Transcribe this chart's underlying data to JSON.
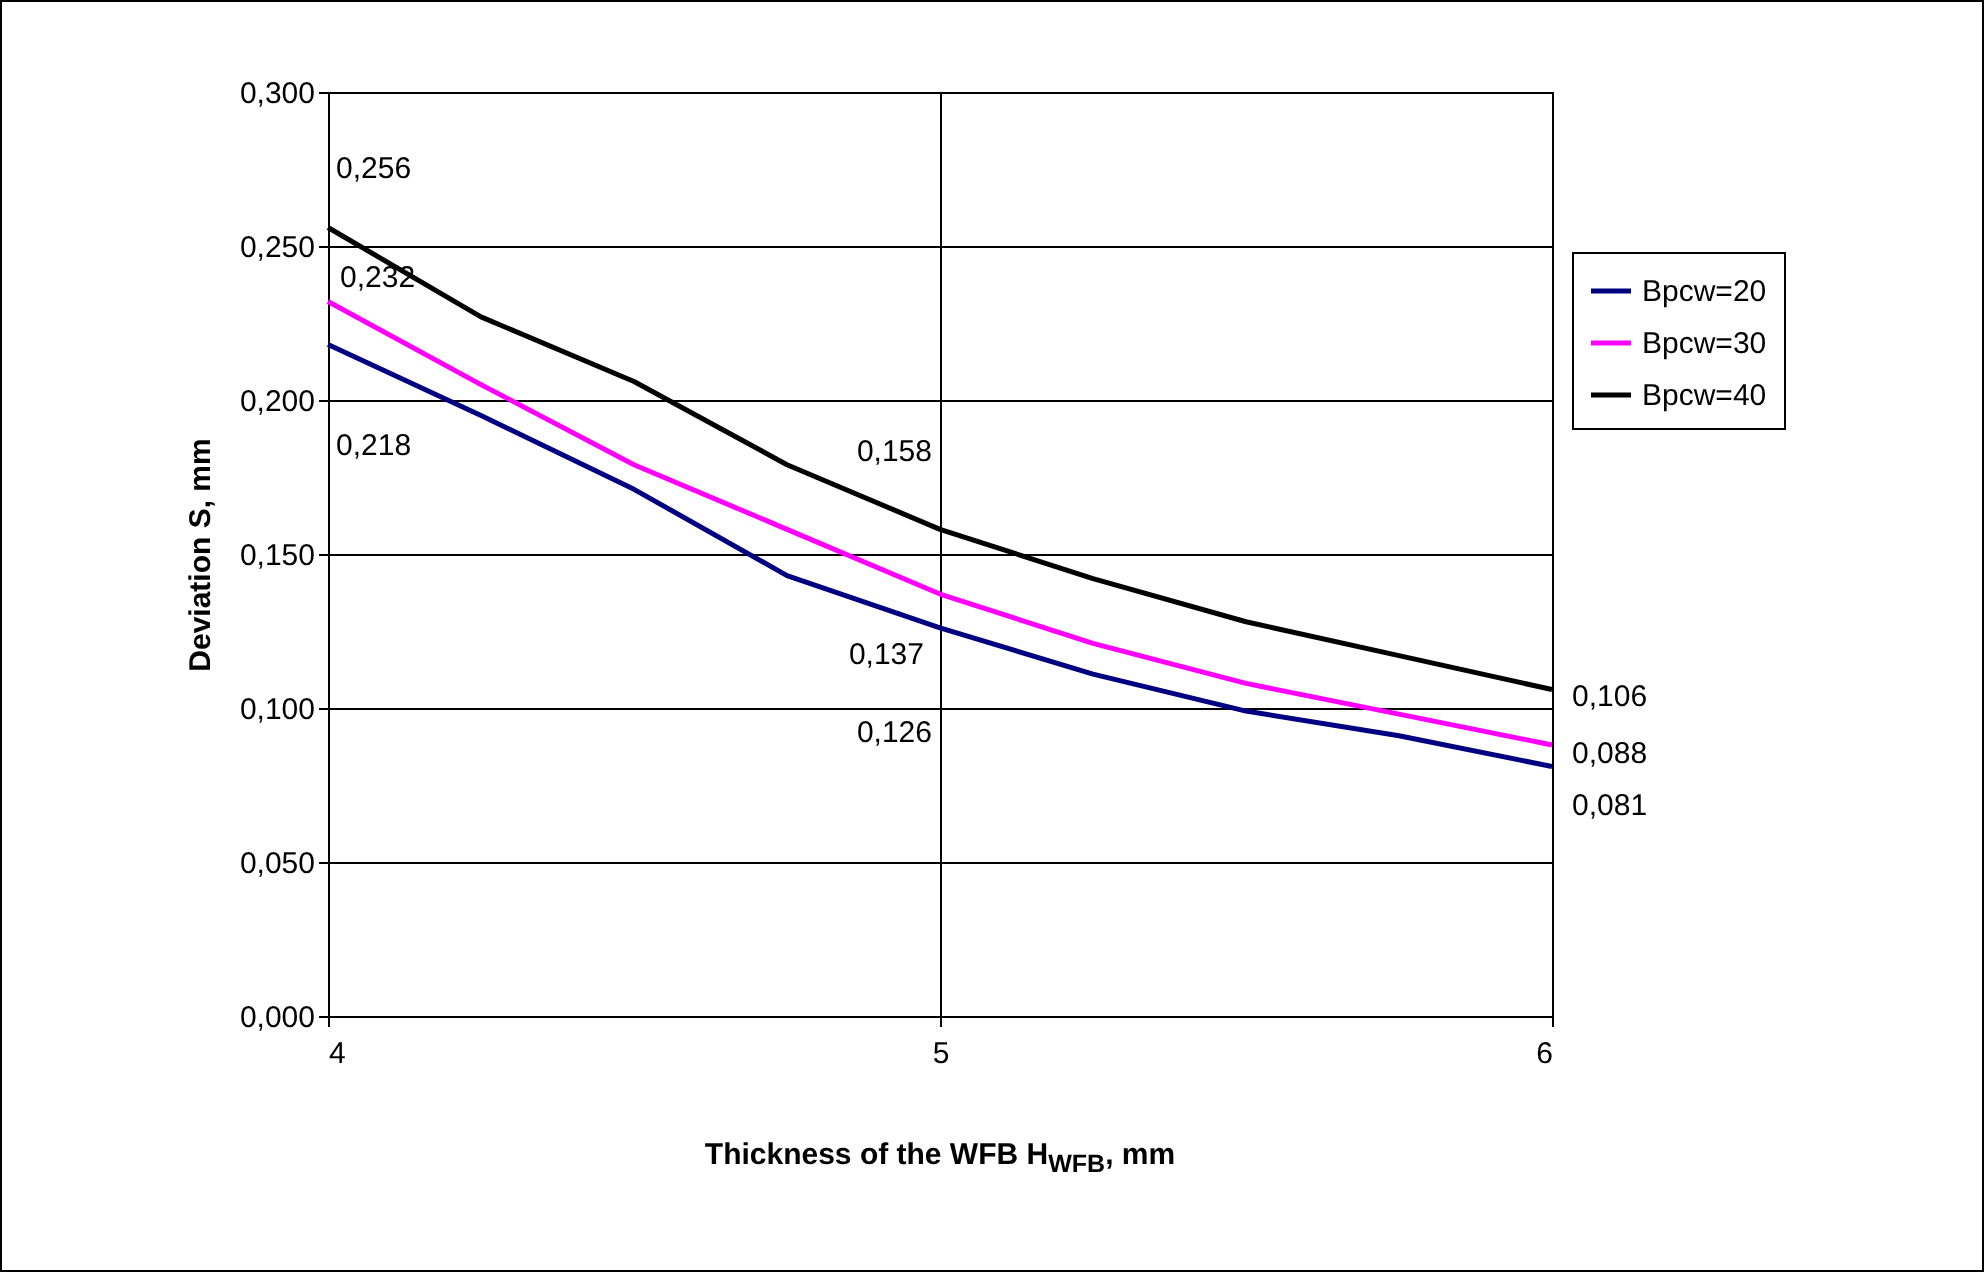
{
  "chart_data": {
    "type": "line",
    "xlabel": "Thickness of the WFB H$_{WFB}$, mm",
    "ylabel": "Deviation S, mm",
    "x": [
      4,
      4.25,
      4.5,
      4.75,
      5,
      5.25,
      5.5,
      5.75,
      6
    ],
    "series": [
      {
        "name": "Bpcw=20",
        "color": "#000080",
        "values": [
          0.218,
          0.195,
          0.171,
          0.143,
          0.126,
          0.111,
          0.099,
          0.091,
          0.081
        ],
        "value_labels": [
          "0,218",
          null,
          null,
          null,
          "0,126",
          null,
          null,
          null,
          "0,081"
        ]
      },
      {
        "name": "Bpcw=30",
        "color": "#ff00ff",
        "values": [
          0.232,
          0.205,
          0.179,
          0.158,
          0.137,
          0.121,
          0.108,
          0.098,
          0.088
        ],
        "value_labels": [
          "0,232",
          null,
          null,
          null,
          "0,137",
          null,
          null,
          null,
          "0,088"
        ]
      },
      {
        "name": "Bpcw=40",
        "color": "#000000",
        "values": [
          0.256,
          0.227,
          0.206,
          0.179,
          0.158,
          0.142,
          0.128,
          0.117,
          0.106
        ],
        "value_labels": [
          "0,256",
          null,
          null,
          null,
          "0,158",
          null,
          null,
          null,
          "0,106"
        ]
      }
    ],
    "xlim": [
      4,
      6
    ],
    "xticks": [
      4,
      5,
      6
    ],
    "ylim": [
      0,
      0.3
    ],
    "yticks": [
      {
        "value": 0,
        "label": "0,000"
      },
      {
        "value": 0.05,
        "label": "0,050"
      },
      {
        "value": 0.1,
        "label": "0,100"
      },
      {
        "value": 0.15,
        "label": "0,150"
      },
      {
        "value": 0.2,
        "label": "0,200"
      },
      {
        "value": 0.25,
        "label": "0,250"
      },
      {
        "value": 0.3,
        "label": "0,300"
      }
    ],
    "grid": true,
    "legend": "right",
    "marker": "none",
    "line_style": "solid"
  }
}
